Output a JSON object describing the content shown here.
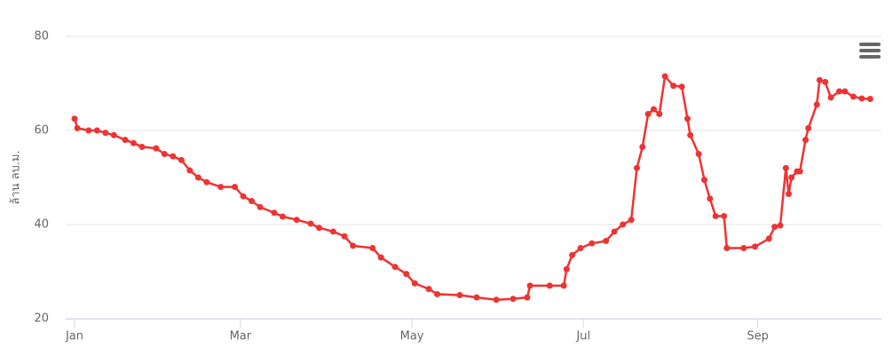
{
  "chart_data": {
    "type": "line",
    "y_axis_label": "ล้าน ลบ.ม.",
    "x": [
      0,
      1,
      5,
      8,
      11,
      14,
      18,
      21,
      24,
      29,
      32,
      35,
      38,
      41,
      44,
      47,
      52,
      57,
      60,
      63,
      66,
      71,
      74,
      79,
      84,
      87,
      92,
      96,
      99,
      106,
      109,
      114,
      118,
      121,
      126,
      129,
      137,
      143,
      150,
      156,
      161,
      162,
      169,
      174,
      175,
      177,
      180,
      184,
      189,
      192,
      195,
      198,
      200,
      202,
      204,
      206,
      208,
      210,
      213,
      216,
      218,
      219,
      222,
      224,
      226,
      228,
      231,
      232,
      238,
      242,
      247,
      249,
      251,
      253,
      254,
      255,
      257,
      258,
      260,
      261,
      264,
      265,
      267,
      269,
      272,
      274,
      277,
      280,
      283
    ],
    "series": [
      {
        "color": "#ee3333",
        "values": [
          62.5,
          60.5,
          60,
          60,
          59.5,
          59,
          58,
          57.3,
          56.5,
          56.2,
          55,
          54.5,
          53.7,
          51.5,
          50,
          49,
          48,
          48,
          46,
          45,
          43.7,
          42.5,
          41.7,
          41,
          40.2,
          39.3,
          38.5,
          37.5,
          35.5,
          35,
          33,
          31,
          29.5,
          27.5,
          26.3,
          25.2,
          25,
          24.5,
          24,
          24.2,
          24.5,
          27,
          27,
          27,
          30.5,
          33.5,
          35,
          36,
          36.5,
          38.5,
          40,
          41,
          52,
          56.5,
          63.5,
          64.5,
          63.5,
          71.5,
          69.5,
          69.3,
          62.5,
          59,
          55,
          49.5,
          45.5,
          41.8,
          41.8,
          35,
          35,
          35.3,
          37,
          39.5,
          39.8,
          52,
          46.5,
          50,
          51.3,
          51.3,
          58,
          60.5,
          65.5,
          70.7,
          70.3,
          67,
          68.3,
          68.3,
          67.2,
          66.8,
          66.7
        ]
      }
    ],
    "xlim": [
      0,
      287
    ],
    "xticks": [
      {
        "value": 0,
        "label": "Jan"
      },
      {
        "value": 59,
        "label": "Mar"
      },
      {
        "value": 120,
        "label": "May"
      },
      {
        "value": 181,
        "label": "Jul"
      },
      {
        "value": 243,
        "label": "Sep"
      }
    ],
    "ylim": [
      20,
      80
    ],
    "yticks": [
      20,
      40,
      60,
      80
    ],
    "grid": true
  }
}
